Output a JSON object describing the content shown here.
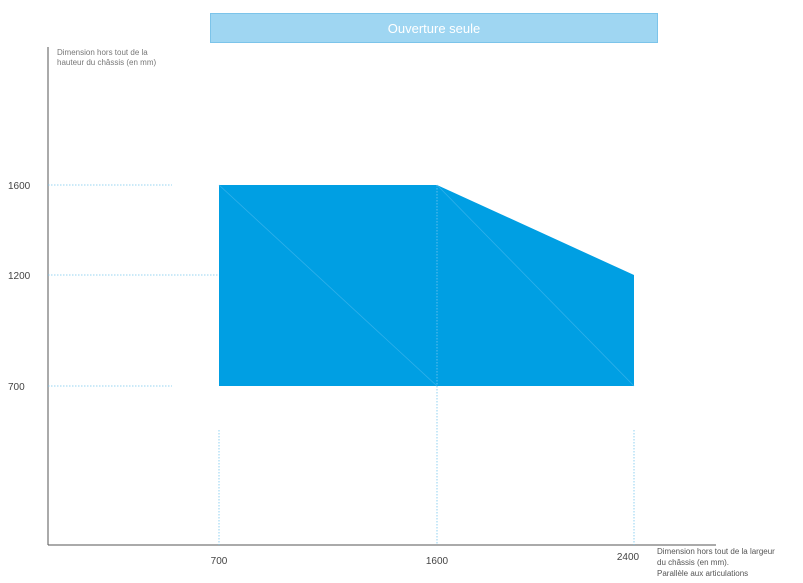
{
  "banner": {
    "label": "Ouverture seule"
  },
  "chart_data": {
    "type": "area",
    "title": "Ouverture seule",
    "ylabel": "Dimension hors tout de la hauteur du châssis (en mm)",
    "xlabel_lines": [
      "Dimension hors tout de la largeur",
      "du châssis (en mm).",
      "Parallèle aux articulations"
    ],
    "x_ticks": [
      700,
      1600,
      2400
    ],
    "y_ticks": [
      700,
      1200,
      1600
    ],
    "xlim": [
      0,
      2700
    ],
    "ylim": [
      0,
      2100
    ],
    "polygon": [
      {
        "x": 700,
        "y": 700
      },
      {
        "x": 700,
        "y": 1600
      },
      {
        "x": 1600,
        "y": 1600
      },
      {
        "x": 2400,
        "y": 1200
      },
      {
        "x": 2400,
        "y": 700
      }
    ],
    "colors": {
      "fill": "#009fe3",
      "axis": "#555555",
      "guide": "#76c6ee",
      "tick_text": "#444444"
    },
    "grid": false
  }
}
